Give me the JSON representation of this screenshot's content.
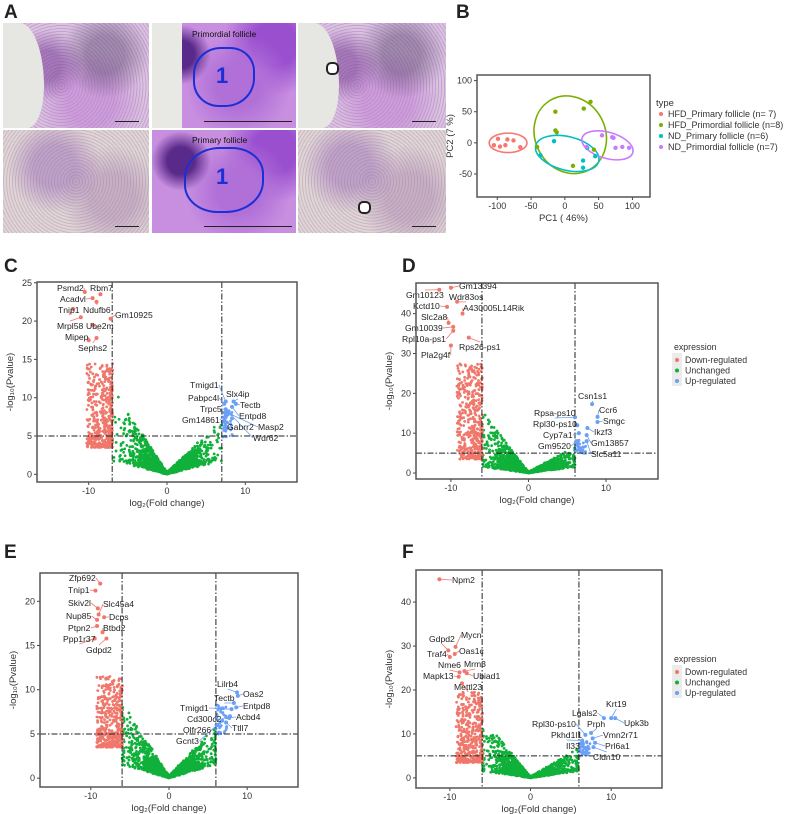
{
  "panels": {
    "A": "A",
    "B": "B",
    "C": "C",
    "D": "D",
    "E": "E",
    "F": "F"
  },
  "panel_a": {
    "roi_titles": [
      "Primordial follicle",
      "Primary follicle"
    ],
    "roi_number": "1"
  },
  "colors": {
    "down": "#f0776b",
    "unchanged": "#10b13a",
    "up": "#6aa0f5",
    "hfd_primary": "#f8766d",
    "hfd_primordial": "#7cae00",
    "nd_primary": "#00bfc4",
    "nd_primordial": "#c77cff"
  },
  "chart_data": [
    {
      "panel": "B",
      "type": "scatter",
      "xlabel": "PC1 ( 46%)",
      "ylabel": "PC2 (7 %)",
      "xlim": [
        -130,
        126
      ],
      "ylim": [
        -87,
        109
      ],
      "xticks": [
        -100,
        -50,
        0,
        50,
        100
      ],
      "yticks": [
        100,
        50,
        0,
        -50
      ],
      "legend_title": "type",
      "legend_position": "right",
      "series": [
        {
          "name": "HFD_Primary follicle (n= 7)",
          "color": "#f8766d",
          "points": [
            [
              -99,
              6.5
            ],
            [
              -105,
              -3.8
            ],
            [
              -96,
              -5.9
            ],
            [
              -85,
              5.4
            ],
            [
              -88,
              -3.8
            ],
            [
              -76,
              3.8
            ],
            [
              -66,
              -7
            ]
          ],
          "ellipse": {
            "cx": -84,
            "cy": 0,
            "rx": 28,
            "ry": 15.6,
            "angle": 0
          }
        },
        {
          "name": "HFD_Primordial follicle (n=8)",
          "color": "#7cae00",
          "points": [
            [
              38,
              66
            ],
            [
              28,
              55
            ],
            [
              -14,
              50
            ],
            [
              -14,
              20
            ],
            [
              -12,
              17
            ],
            [
              -41,
              -6.5
            ],
            [
              12,
              -37
            ],
            [
              43,
              -11
            ]
          ],
          "ellipse": {
            "cx": 8,
            "cy": 13,
            "rx": 52,
            "ry": 64,
            "angle": -28
          }
        },
        {
          "name": "ND_Primary follicle (n=6)",
          "color": "#00bfc4",
          "points": [
            [
              -16,
              2.7
            ],
            [
              -36,
              -20
            ],
            [
              33,
              -8
            ],
            [
              27,
              -28.5
            ],
            [
              27,
              -40
            ],
            [
              45,
              -21.5
            ]
          ],
          "ellipse": {
            "cx": 3.5,
            "cy": -17,
            "rx": 48,
            "ry": 27,
            "angle": 14
          }
        },
        {
          "name": "ND_Primordial follicle (n=7)",
          "color": "#c77cff",
          "points": [
            [
              55,
              12
            ],
            [
              70,
              9
            ],
            [
              72,
              8
            ],
            [
              75,
              -8
            ],
            [
              85,
              -6.5
            ],
            [
              95,
              -8
            ],
            [
              32,
              -6.5
            ]
          ],
          "ellipse": {
            "cx": 63,
            "cy": -4,
            "rx": 39,
            "ry": 21,
            "angle": 16
          }
        }
      ]
    },
    {
      "panel": "C",
      "type": "scatter",
      "xlabel": "log₂(Fold change)",
      "ylabel": "-log₁₀(Pvalue)",
      "xlim": [
        -16.6,
        16.6
      ],
      "ylim": [
        -1,
        25.1
      ],
      "xticks": [
        -10,
        0,
        10
      ],
      "yticks": [
        0,
        5,
        10,
        15,
        20,
        25
      ],
      "fc_cutoff": 7,
      "p_cutoff": 5,
      "labeled_genes": [
        {
          "gene": "Psmd2",
          "x": -10.5,
          "y": 23.8,
          "group": "down"
        },
        {
          "gene": "Rbm7",
          "x": -8.5,
          "y": 23.5,
          "group": "down"
        },
        {
          "gene": "Acadvl",
          "x": -9.5,
          "y": 23,
          "group": "down"
        },
        {
          "gene": "Ndufb6",
          "x": -9,
          "y": 22.5,
          "group": "down"
        },
        {
          "gene": "Tnip1",
          "x": -12,
          "y": 21.6,
          "group": "down"
        },
        {
          "gene": "Gm10925",
          "x": -7.2,
          "y": 20.3,
          "group": "down"
        },
        {
          "gene": "Mrpl58",
          "x": -11,
          "y": 20.5,
          "group": "down"
        },
        {
          "gene": "Ube2m",
          "x": -9.5,
          "y": 19.5,
          "group": "down"
        },
        {
          "gene": "Mipep",
          "x": -10,
          "y": 17.5,
          "group": "down"
        },
        {
          "gene": "Sephs2",
          "x": -9,
          "y": 17.8,
          "group": "down"
        },
        {
          "gene": "Tmigd1",
          "x": 7.5,
          "y": 9.5,
          "group": "up"
        },
        {
          "gene": "Slx4ip",
          "x": 8.5,
          "y": 9.5,
          "group": "up"
        },
        {
          "gene": "Pabpc4l",
          "x": 7.3,
          "y": 9.2,
          "group": "up"
        },
        {
          "gene": "Tectb",
          "x": 8.8,
          "y": 9.2,
          "group": "up"
        },
        {
          "gene": "Trpc5",
          "x": 7.5,
          "y": 8.5,
          "group": "up"
        },
        {
          "gene": "Entpd8",
          "x": 8.3,
          "y": 8.8,
          "group": "up"
        },
        {
          "gene": "Gm14861",
          "x": 7.5,
          "y": 7.8,
          "group": "up"
        },
        {
          "gene": "Gabrr2",
          "x": 7.5,
          "y": 7.5,
          "group": "up"
        },
        {
          "gene": "Masp2",
          "x": 7.8,
          "y": 8,
          "group": "up"
        },
        {
          "gene": "Wdr62",
          "x": 7.8,
          "y": 8.2,
          "group": "up"
        }
      ]
    },
    {
      "panel": "D",
      "type": "scatter",
      "xlabel": "log₂(Fold change)",
      "ylabel": "-log₁₀(Pvalue)",
      "xlim": [
        -14.5,
        16.7
      ],
      "ylim": [
        -1.5,
        47.7
      ],
      "xticks": [
        -10,
        0,
        10
      ],
      "yticks": [
        0,
        10,
        20,
        30,
        40
      ],
      "fc_cutoff": 6,
      "p_cutoff": 5,
      "legend_title": "expression",
      "legend_position": "right",
      "legend": [
        "Down-regulated",
        "Unchanged",
        "Up-regulated"
      ],
      "labeled_genes": [
        {
          "gene": "Gm13394",
          "x": -10,
          "y": 46.5,
          "group": "down"
        },
        {
          "gene": "Gm10123",
          "x": -11.5,
          "y": 46,
          "group": "down"
        },
        {
          "gene": "Wdr83os",
          "x": -9.2,
          "y": 43,
          "group": "down"
        },
        {
          "gene": "Kctd10",
          "x": -10.5,
          "y": 41.7,
          "group": "down"
        },
        {
          "gene": "A430005L14Rik",
          "x": -8.5,
          "y": 40,
          "group": "down"
        },
        {
          "gene": "Slc2a8",
          "x": -10.3,
          "y": 37.7,
          "group": "down"
        },
        {
          "gene": "Gm10039",
          "x": -9.7,
          "y": 36.7,
          "group": "down"
        },
        {
          "gene": "Rpl10a-ps1",
          "x": -9.7,
          "y": 35.7,
          "group": "down"
        },
        {
          "gene": "Rps26-ps1",
          "x": -7.7,
          "y": 34,
          "group": "down"
        },
        {
          "gene": "Pla2g4f",
          "x": -10,
          "y": 32,
          "group": "down"
        },
        {
          "gene": "Csn1s1",
          "x": 8.2,
          "y": 17.3,
          "group": "up"
        },
        {
          "gene": "Ccr6",
          "x": 8.9,
          "y": 14.1,
          "group": "up"
        },
        {
          "gene": "Smgc",
          "x": 8.9,
          "y": 12.8,
          "group": "up"
        },
        {
          "gene": "Rpsa-ps10",
          "x": 6,
          "y": 14,
          "group": "up"
        },
        {
          "gene": "Rpl30-ps10",
          "x": 6.3,
          "y": 12,
          "group": "up"
        },
        {
          "gene": "Ikzf3",
          "x": 7.6,
          "y": 11.3,
          "group": "up"
        },
        {
          "gene": "Cyp7a1",
          "x": 6.5,
          "y": 10,
          "group": "up"
        },
        {
          "gene": "Gm13857",
          "x": 7.5,
          "y": 9.5,
          "group": "up"
        },
        {
          "gene": "Gm9520",
          "x": 6.2,
          "y": 8,
          "group": "up"
        },
        {
          "gene": "Slc5a11",
          "x": 7.5,
          "y": 8,
          "group": "up"
        }
      ]
    },
    {
      "panel": "E",
      "type": "scatter",
      "xlabel": "log₂(Fold change)",
      "ylabel": "-log₁₀(Pvalue)",
      "xlim": [
        -16.5,
        16.5
      ],
      "ylim": [
        -1,
        23.2
      ],
      "xticks": [
        -10,
        0,
        10
      ],
      "yticks": [
        0,
        5,
        10,
        15,
        20
      ],
      "fc_cutoff": 6,
      "p_cutoff": 5,
      "labeled_genes": [
        {
          "gene": "Zfp692",
          "x": -8.8,
          "y": 22,
          "group": "down"
        },
        {
          "gene": "Tnip1",
          "x": -9.4,
          "y": 21.2,
          "group": "down"
        },
        {
          "gene": "Skiv2l",
          "x": -9.1,
          "y": 19.2,
          "group": "down"
        },
        {
          "gene": "Slc45a4",
          "x": -9,
          "y": 18.5,
          "group": "down"
        },
        {
          "gene": "Nup85",
          "x": -9.2,
          "y": 17.9,
          "group": "down"
        },
        {
          "gene": "Dcps",
          "x": -8.3,
          "y": 18.2,
          "group": "down"
        },
        {
          "gene": "Ptpn2",
          "x": -9.2,
          "y": 17.2,
          "group": "down"
        },
        {
          "gene": "Btbd2",
          "x": -8.5,
          "y": 16.5,
          "group": "down"
        },
        {
          "gene": "Ppp1r37",
          "x": -9.5,
          "y": 15.8,
          "group": "down"
        },
        {
          "gene": "Gdpd2",
          "x": -8,
          "y": 15.8,
          "group": "down"
        },
        {
          "gene": "Lilrb4",
          "x": 8.7,
          "y": 9.7,
          "group": "up"
        },
        {
          "gene": "Oas2",
          "x": 8.8,
          "y": 9.3,
          "group": "up"
        },
        {
          "gene": "Tectb",
          "x": 8.3,
          "y": 8.5,
          "group": "up"
        },
        {
          "gene": "Entpd8",
          "x": 8.6,
          "y": 8,
          "group": "up"
        },
        {
          "gene": "Tmigd1",
          "x": 8,
          "y": 7.8,
          "group": "up"
        },
        {
          "gene": "Cd300c2",
          "x": 7.8,
          "y": 7,
          "group": "up"
        },
        {
          "gene": "Acbd4",
          "x": 7.7,
          "y": 6.8,
          "group": "up"
        },
        {
          "gene": "Olfr266",
          "x": 6.8,
          "y": 6.5,
          "group": "up"
        },
        {
          "gene": "Ttll7",
          "x": 7.3,
          "y": 6.3,
          "group": "up"
        },
        {
          "gene": "Gcnt3",
          "x": 6.2,
          "y": 6,
          "group": "up"
        }
      ]
    },
    {
      "panel": "F",
      "type": "scatter",
      "xlabel": "log₂(Fold change)",
      "ylabel": "-log₁₀(Pvalue)",
      "xlim": [
        -14.2,
        16.3
      ],
      "ylim": [
        -2.3,
        47.3
      ],
      "xticks": [
        -10,
        0,
        10
      ],
      "yticks": [
        0,
        10,
        20,
        30,
        40
      ],
      "fc_cutoff": 6,
      "p_cutoff": 5,
      "legend_title": "expression",
      "legend_position": "right",
      "legend": [
        "Down-regulated",
        "Unchanged",
        "Up-regulated"
      ],
      "labeled_genes": [
        {
          "gene": "Npm2",
          "x": -11.3,
          "y": 45.2,
          "group": "down"
        },
        {
          "gene": "Mycn",
          "x": -9.3,
          "y": 29.8,
          "group": "down"
        },
        {
          "gene": "Gdpd2",
          "x": -10.2,
          "y": 29,
          "group": "down"
        },
        {
          "gene": "Oas1c",
          "x": -9.4,
          "y": 28.2,
          "group": "down"
        },
        {
          "gene": "Traf4",
          "x": -10,
          "y": 27.5,
          "group": "down"
        },
        {
          "gene": "Nme6",
          "x": -8.8,
          "y": 24,
          "group": "down"
        },
        {
          "gene": "Mrm3",
          "x": -8.2,
          "y": 24.3,
          "group": "down"
        },
        {
          "gene": "Mapk13",
          "x": -8.9,
          "y": 23,
          "group": "down"
        },
        {
          "gene": "Ubiad1",
          "x": -7.9,
          "y": 23.8,
          "group": "down"
        },
        {
          "gene": "Mettl23",
          "x": -8.5,
          "y": 21.5,
          "group": "down"
        },
        {
          "gene": "Lgals2",
          "x": 9.1,
          "y": 13.6,
          "group": "up"
        },
        {
          "gene": "Krt19",
          "x": 10,
          "y": 13.6,
          "group": "up"
        },
        {
          "gene": "Upk3b",
          "x": 10.5,
          "y": 13.6,
          "group": "up"
        },
        {
          "gene": "Prph",
          "x": 7.5,
          "y": 10.2,
          "group": "up"
        },
        {
          "gene": "Rpl30-ps10",
          "x": 6.8,
          "y": 9.8,
          "group": "up"
        },
        {
          "gene": "Vmn2r71",
          "x": 7.7,
          "y": 9,
          "group": "up"
        },
        {
          "gene": "Pkhd1l1",
          "x": 6.4,
          "y": 8.5,
          "group": "up"
        },
        {
          "gene": "Prl6a1",
          "x": 8,
          "y": 8,
          "group": "up"
        },
        {
          "gene": "Il33",
          "x": 6.5,
          "y": 7.7,
          "group": "up"
        },
        {
          "gene": "Cldn10",
          "x": 7.8,
          "y": 7,
          "group": "up"
        }
      ]
    }
  ]
}
